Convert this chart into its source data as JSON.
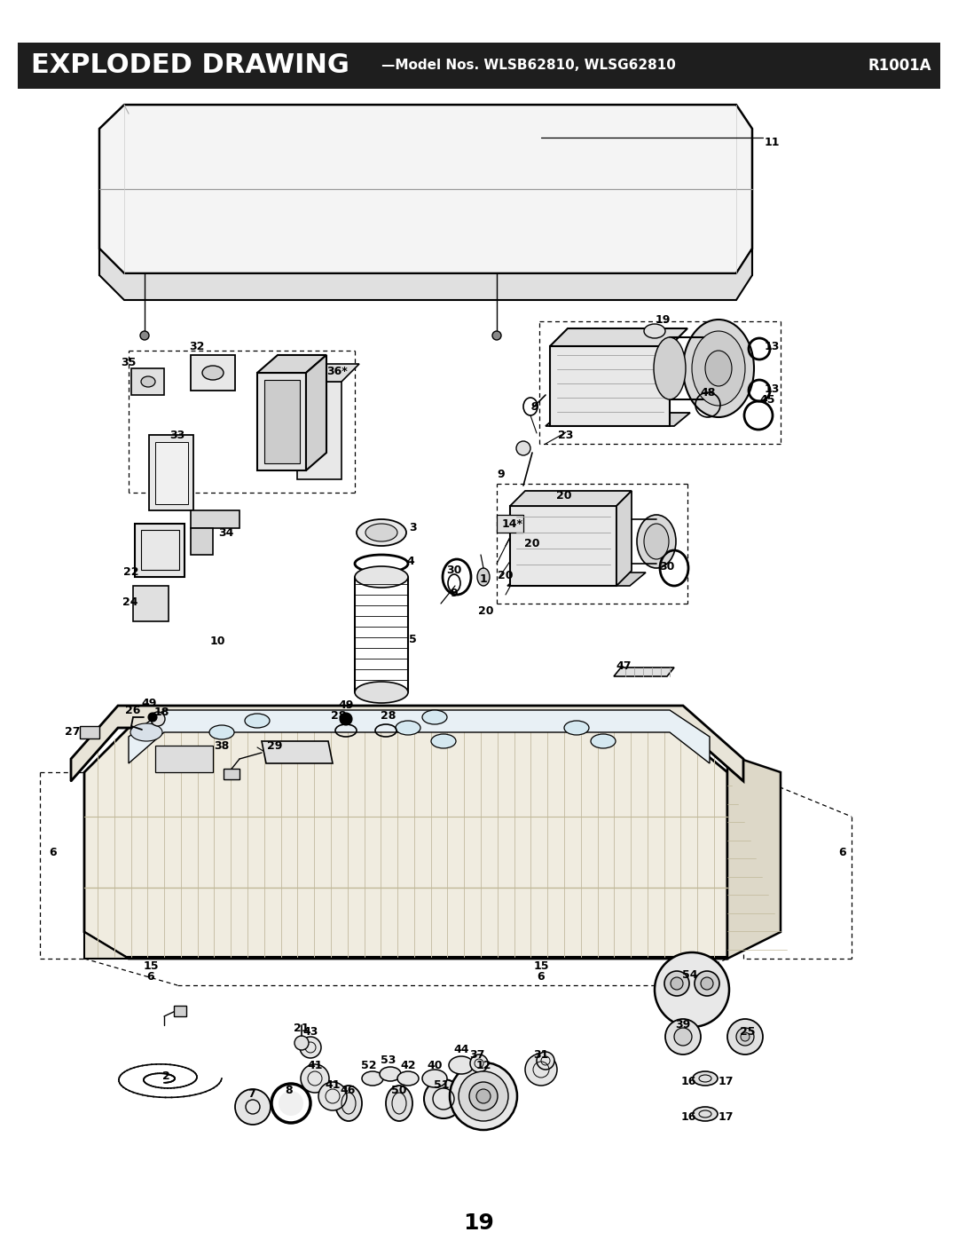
{
  "title_main": "EXPLODED DRAWING",
  "title_sub": "Model Nos. WLSB62810, WLSG62810",
  "title_right": "R1001A",
  "page_number": "19",
  "header_bg_color": "#1e1e1e",
  "header_text_color": "#ffffff",
  "bg_color": "#ffffff",
  "fig_width": 10.8,
  "fig_height": 13.97
}
